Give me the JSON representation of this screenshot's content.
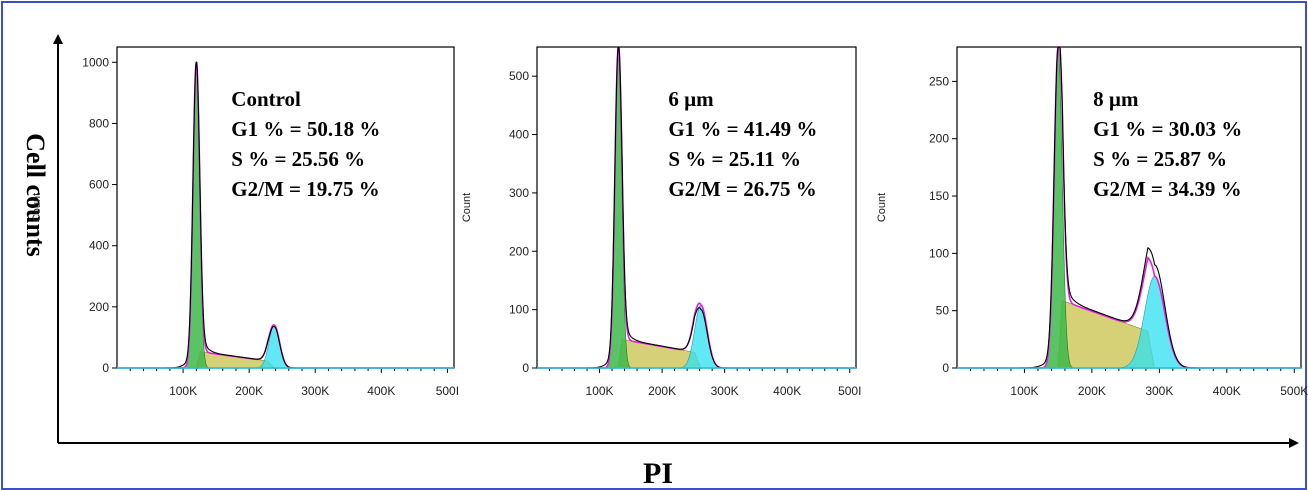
{
  "figure": {
    "y_axis_label": "Cell counts",
    "x_axis_label": "PI",
    "border_color": "#3b4fc8"
  },
  "colors": {
    "g1_fill": "#3cb84a",
    "s_fill": "#c8c24a",
    "g2_fill": "#2ee0f0",
    "model_line": "#e020e0",
    "data_line": "#000000"
  },
  "chart_data": [
    {
      "type": "area",
      "sample": "Control",
      "ylabel": "Count",
      "ylim": [
        0,
        1050
      ],
      "y_ticks": [
        0,
        200,
        400,
        600,
        800,
        1000
      ],
      "x_tick_labels": [
        "100K",
        "200K",
        "300K",
        "400K",
        "500I"
      ],
      "x_ticks": [
        100,
        200,
        300,
        400,
        500
      ],
      "xlim": [
        0,
        510
      ],
      "annotations": [
        "Control",
        "G1 % = 50.18 %",
        "S % = 25.56 %",
        "G2/M = 19.75 %"
      ],
      "g1": {
        "mean": 120,
        "sd": 5,
        "height": 1000
      },
      "s": {
        "from": 120,
        "to": 238,
        "start": 55,
        "end": 20
      },
      "g2": {
        "mean": 238,
        "sd": 8,
        "height": 140
      },
      "g2_data_height": 135
    },
    {
      "type": "area",
      "sample": "6 µm",
      "ylabel": "Count",
      "ylim": [
        0,
        550
      ],
      "y_ticks": [
        0,
        100,
        200,
        300,
        400,
        500
      ],
      "x_tick_labels": [
        "100K",
        "200K",
        "300K",
        "400K",
        "500I"
      ],
      "x_ticks": [
        100,
        200,
        300,
        400,
        500
      ],
      "xlim": [
        0,
        510
      ],
      "annotations": [
        "6 µm",
        "G1 % = 41.49 %",
        "S % = 25.11 %",
        "G2/M = 26.75 %"
      ],
      "g1": {
        "mean": 130,
        "sd": 5.5,
        "height": 550
      },
      "s": {
        "from": 130,
        "to": 262,
        "start": 50,
        "end": 25
      },
      "g2": {
        "mean": 262,
        "sd": 10,
        "height": 108
      },
      "g2_data_height": 100
    },
    {
      "type": "area",
      "sample": "8 µm",
      "ylabel": "Count",
      "ylim": [
        0,
        280
      ],
      "y_ticks": [
        0,
        50,
        100,
        150,
        200,
        250
      ],
      "x_tick_labels": [
        "100K",
        "200K",
        "300K",
        "400K",
        "500K"
      ],
      "x_ticks": [
        100,
        200,
        300,
        400,
        500
      ],
      "xlim": [
        0,
        510
      ],
      "annotations": [
        "8 µm",
        "G1 % = 30.03 %",
        "S % = 25.87 %",
        "G2/M = 34.39 %"
      ],
      "g1": {
        "mean": 150,
        "sd": 6,
        "height": 280
      },
      "s": {
        "from": 150,
        "to": 293,
        "start": 60,
        "end": 30
      },
      "g2": {
        "mean": 293,
        "sd": 15,
        "height": 80
      },
      "g2_data_height": 90
    }
  ]
}
